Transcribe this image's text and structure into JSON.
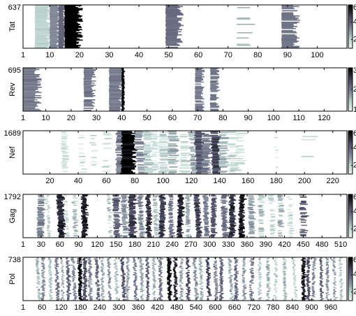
{
  "chart_data": [
    {
      "type": "heatmap",
      "ylabel": "Tat",
      "ymax_label": "637",
      "rows": 637,
      "xlim": [
        1,
        110
      ],
      "xticks": [
        1,
        10,
        20,
        30,
        40,
        50,
        60,
        70,
        80,
        90,
        100
      ],
      "colorbar": {
        "min": 1,
        "max": 6,
        "ticks": [
          2,
          4,
          6
        ]
      },
      "bands": [
        {
          "x0": 5,
          "x1": 10,
          "coverage": 1.0,
          "level": 2.0
        },
        {
          "x0": 10,
          "x1": 13,
          "coverage": 1.0,
          "level": 3.2
        },
        {
          "x0": 13,
          "x1": 15,
          "coverage": 1.0,
          "level": 4.0
        },
        {
          "x0": 15,
          "x1": 20,
          "coverage": 1.0,
          "level": 6.0
        },
        {
          "x0": 49,
          "x1": 54,
          "coverage": 0.95,
          "level": 3.8
        },
        {
          "x0": 73,
          "x1": 78,
          "coverage": 0.2,
          "level": 2.4
        },
        {
          "x0": 88,
          "x1": 93,
          "coverage": 0.9,
          "level": 3.6
        }
      ]
    },
    {
      "type": "heatmap",
      "ylabel": "Rev",
      "ymax_label": "695",
      "rows": 695,
      "xlim": [
        1,
        129
      ],
      "xticks": [
        1,
        10,
        20,
        30,
        40,
        50,
        60,
        70,
        80,
        90,
        100,
        110,
        120
      ],
      "colorbar": {
        "min": 1,
        "max": 3,
        "ticks": [
          1,
          2,
          3
        ]
      },
      "bands": [
        {
          "x0": 1,
          "x1": 7,
          "coverage": 1.0,
          "level": 2.0
        },
        {
          "x0": 25,
          "x1": 29,
          "coverage": 0.95,
          "level": 2.0
        },
        {
          "x0": 35,
          "x1": 40,
          "coverage": 1.0,
          "level": 2.0
        },
        {
          "x0": 40,
          "x1": 41,
          "coverage": 1.0,
          "level": 3.0
        },
        {
          "x0": 69,
          "x1": 72,
          "coverage": 0.9,
          "level": 2.0
        },
        {
          "x0": 75,
          "x1": 78,
          "coverage": 0.85,
          "level": 2.0
        }
      ]
    },
    {
      "type": "heatmap",
      "ylabel": "Nef",
      "ymax_label": "1689",
      "rows": 1689,
      "xlim": [
        1,
        230
      ],
      "xticks": [
        20,
        40,
        60,
        80,
        100,
        120,
        140,
        160,
        180,
        200,
        220
      ],
      "colorbar": {
        "min": 1,
        "max": 6,
        "ticks": [
          2,
          4,
          6
        ]
      },
      "bands": [
        {
          "x0": 28,
          "x1": 32,
          "coverage": 0.6,
          "level": 1.6
        },
        {
          "x0": 40,
          "x1": 44,
          "coverage": 0.4,
          "level": 1.6
        },
        {
          "x0": 48,
          "x1": 52,
          "coverage": 0.3,
          "level": 1.6
        },
        {
          "x0": 58,
          "x1": 63,
          "coverage": 0.3,
          "level": 1.6
        },
        {
          "x0": 67,
          "x1": 72,
          "coverage": 0.9,
          "level": 3.5
        },
        {
          "x0": 71,
          "x1": 80,
          "coverage": 1.0,
          "level": 6.0
        },
        {
          "x0": 80,
          "x1": 86,
          "coverage": 0.8,
          "level": 3.0
        },
        {
          "x0": 86,
          "x1": 92,
          "coverage": 0.7,
          "level": 2.0
        },
        {
          "x0": 92,
          "x1": 96,
          "coverage": 0.6,
          "level": 1.6
        },
        {
          "x0": 98,
          "x1": 104,
          "coverage": 0.8,
          "level": 1.8
        },
        {
          "x0": 104,
          "x1": 110,
          "coverage": 0.7,
          "level": 2.6
        },
        {
          "x0": 112,
          "x1": 118,
          "coverage": 0.6,
          "level": 1.8
        },
        {
          "x0": 118,
          "x1": 122,
          "coverage": 0.8,
          "level": 2.6
        },
        {
          "x0": 122,
          "x1": 128,
          "coverage": 1.0,
          "level": 4.2
        },
        {
          "x0": 128,
          "x1": 134,
          "coverage": 0.9,
          "level": 3.4
        },
        {
          "x0": 134,
          "x1": 140,
          "coverage": 0.95,
          "level": 4.6
        },
        {
          "x0": 140,
          "x1": 146,
          "coverage": 0.7,
          "level": 2.4
        },
        {
          "x0": 146,
          "x1": 152,
          "coverage": 0.5,
          "level": 1.8
        },
        {
          "x0": 152,
          "x1": 158,
          "coverage": 0.4,
          "level": 1.6
        },
        {
          "x0": 178,
          "x1": 180,
          "coverage": 0.1,
          "level": 1.6
        },
        {
          "x0": 198,
          "x1": 208,
          "coverage": 0.05,
          "level": 1.6
        }
      ]
    },
    {
      "type": "heatmap",
      "ylabel": "Gag",
      "ymax_label": "1792",
      "rows": 1792,
      "xlim": [
        1,
        520
      ],
      "xticks": [
        1,
        30,
        60,
        90,
        120,
        150,
        180,
        210,
        240,
        270,
        300,
        330,
        360,
        390,
        420,
        450,
        480,
        510
      ],
      "colorbar": {
        "min": 1,
        "max": 6,
        "ticks": [
          2,
          4,
          6
        ]
      },
      "bands": [
        {
          "x0": 25,
          "x1": 35,
          "coverage": 0.95,
          "level": 3.2
        },
        {
          "x0": 38,
          "x1": 42,
          "coverage": 0.8,
          "level": 2.0
        },
        {
          "x0": 55,
          "x1": 65,
          "coverage": 1.0,
          "level": 5.2
        },
        {
          "x0": 67,
          "x1": 72,
          "coverage": 0.6,
          "level": 1.6
        },
        {
          "x0": 80,
          "x1": 86,
          "coverage": 0.7,
          "level": 2.4
        },
        {
          "x0": 95,
          "x1": 103,
          "coverage": 1.0,
          "level": 5.4
        },
        {
          "x0": 135,
          "x1": 140,
          "coverage": 0.6,
          "level": 2.2
        },
        {
          "x0": 145,
          "x1": 155,
          "coverage": 0.95,
          "level": 4.0
        },
        {
          "x0": 158,
          "x1": 166,
          "coverage": 0.9,
          "level": 3.0
        },
        {
          "x0": 170,
          "x1": 180,
          "coverage": 1.0,
          "level": 4.6
        },
        {
          "x0": 185,
          "x1": 192,
          "coverage": 0.9,
          "level": 3.2
        },
        {
          "x0": 198,
          "x1": 205,
          "coverage": 1.0,
          "level": 5.0
        },
        {
          "x0": 210,
          "x1": 216,
          "coverage": 0.8,
          "level": 2.4
        },
        {
          "x0": 220,
          "x1": 228,
          "coverage": 1.0,
          "level": 4.8
        },
        {
          "x0": 235,
          "x1": 242,
          "coverage": 0.9,
          "level": 3.6
        },
        {
          "x0": 250,
          "x1": 258,
          "coverage": 1.0,
          "level": 5.2
        },
        {
          "x0": 262,
          "x1": 268,
          "coverage": 0.8,
          "level": 2.6
        },
        {
          "x0": 275,
          "x1": 283,
          "coverage": 1.0,
          "level": 4.6
        },
        {
          "x0": 290,
          "x1": 297,
          "coverage": 0.9,
          "level": 3.4
        },
        {
          "x0": 303,
          "x1": 310,
          "coverage": 0.9,
          "level": 4.2
        },
        {
          "x0": 318,
          "x1": 326,
          "coverage": 0.9,
          "level": 3.6
        },
        {
          "x0": 332,
          "x1": 340,
          "coverage": 1.0,
          "level": 5.0
        },
        {
          "x0": 348,
          "x1": 356,
          "coverage": 1.0,
          "level": 5.6
        },
        {
          "x0": 362,
          "x1": 370,
          "coverage": 0.8,
          "level": 2.8
        },
        {
          "x0": 378,
          "x1": 386,
          "coverage": 0.7,
          "level": 2.2
        },
        {
          "x0": 395,
          "x1": 402,
          "coverage": 0.6,
          "level": 1.8
        },
        {
          "x0": 410,
          "x1": 418,
          "coverage": 0.6,
          "level": 2.4
        },
        {
          "x0": 425,
          "x1": 432,
          "coverage": 0.5,
          "level": 1.8
        },
        {
          "x0": 445,
          "x1": 455,
          "coverage": 0.6,
          "level": 4.0
        }
      ]
    },
    {
      "type": "heatmap",
      "ylabel": "Pol",
      "ymax_label": "738",
      "rows": 738,
      "xlim": [
        1,
        1010
      ],
      "xticks": [
        1,
        60,
        120,
        180,
        240,
        300,
        360,
        420,
        480,
        540,
        600,
        660,
        720,
        780,
        840,
        900,
        960
      ],
      "colorbar": {
        "min": 1,
        "max": 6,
        "ticks": [
          2,
          4,
          6
        ]
      },
      "bands": [
        {
          "x0": 40,
          "x1": 48,
          "coverage": 0.9,
          "level": 2.4
        },
        {
          "x0": 60,
          "x1": 68,
          "coverage": 0.9,
          "level": 3.0
        },
        {
          "x0": 80,
          "x1": 88,
          "coverage": 0.9,
          "level": 2.2
        },
        {
          "x0": 100,
          "x1": 108,
          "coverage": 0.9,
          "level": 3.4
        },
        {
          "x0": 118,
          "x1": 124,
          "coverage": 0.9,
          "level": 2.4
        },
        {
          "x0": 135,
          "x1": 143,
          "coverage": 0.95,
          "level": 4.0
        },
        {
          "x0": 152,
          "x1": 160,
          "coverage": 0.9,
          "level": 3.0
        },
        {
          "x0": 172,
          "x1": 182,
          "coverage": 1.0,
          "level": 5.6
        },
        {
          "x0": 188,
          "x1": 198,
          "coverage": 1.0,
          "level": 4.4
        },
        {
          "x0": 205,
          "x1": 213,
          "coverage": 0.9,
          "level": 3.2
        },
        {
          "x0": 225,
          "x1": 233,
          "coverage": 0.95,
          "level": 3.8
        },
        {
          "x0": 245,
          "x1": 252,
          "coverage": 0.9,
          "level": 2.6
        },
        {
          "x0": 265,
          "x1": 272,
          "coverage": 0.9,
          "level": 3.2
        },
        {
          "x0": 285,
          "x1": 292,
          "coverage": 0.9,
          "level": 2.4
        },
        {
          "x0": 305,
          "x1": 313,
          "coverage": 0.95,
          "level": 4.2
        },
        {
          "x0": 325,
          "x1": 332,
          "coverage": 0.9,
          "level": 2.8
        },
        {
          "x0": 345,
          "x1": 352,
          "coverage": 0.9,
          "level": 3.4
        },
        {
          "x0": 365,
          "x1": 373,
          "coverage": 0.9,
          "level": 2.6
        },
        {
          "x0": 385,
          "x1": 392,
          "coverage": 0.95,
          "level": 4.0
        },
        {
          "x0": 405,
          "x1": 412,
          "coverage": 0.9,
          "level": 2.4
        },
        {
          "x0": 425,
          "x1": 433,
          "coverage": 0.95,
          "level": 3.6
        },
        {
          "x0": 450,
          "x1": 460,
          "coverage": 1.0,
          "level": 5.8
        },
        {
          "x0": 470,
          "x1": 478,
          "coverage": 1.0,
          "level": 5.2
        },
        {
          "x0": 490,
          "x1": 498,
          "coverage": 0.9,
          "level": 2.8
        },
        {
          "x0": 510,
          "x1": 518,
          "coverage": 0.95,
          "level": 4.4
        },
        {
          "x0": 530,
          "x1": 538,
          "coverage": 0.9,
          "level": 3.0
        },
        {
          "x0": 550,
          "x1": 558,
          "coverage": 0.9,
          "level": 2.4
        },
        {
          "x0": 572,
          "x1": 580,
          "coverage": 0.95,
          "level": 4.6
        },
        {
          "x0": 595,
          "x1": 603,
          "coverage": 0.9,
          "level": 3.2
        },
        {
          "x0": 615,
          "x1": 623,
          "coverage": 0.95,
          "level": 4.0
        },
        {
          "x0": 640,
          "x1": 648,
          "coverage": 0.9,
          "level": 2.6
        },
        {
          "x0": 660,
          "x1": 668,
          "coverage": 0.95,
          "level": 3.8
        },
        {
          "x0": 685,
          "x1": 693,
          "coverage": 0.9,
          "level": 2.8
        },
        {
          "x0": 710,
          "x1": 718,
          "coverage": 0.9,
          "level": 3.4
        },
        {
          "x0": 735,
          "x1": 742,
          "coverage": 0.8,
          "level": 2.2
        },
        {
          "x0": 760,
          "x1": 768,
          "coverage": 0.8,
          "level": 2.6
        },
        {
          "x0": 785,
          "x1": 792,
          "coverage": 0.8,
          "level": 2.0
        },
        {
          "x0": 810,
          "x1": 818,
          "coverage": 0.8,
          "level": 2.4
        },
        {
          "x0": 840,
          "x1": 846,
          "coverage": 0.8,
          "level": 2.0
        },
        {
          "x0": 870,
          "x1": 880,
          "coverage": 1.0,
          "level": 5.4
        },
        {
          "x0": 885,
          "x1": 893,
          "coverage": 0.95,
          "level": 4.4
        },
        {
          "x0": 905,
          "x1": 912,
          "coverage": 0.9,
          "level": 3.2
        },
        {
          "x0": 925,
          "x1": 932,
          "coverage": 0.95,
          "level": 4.0
        },
        {
          "x0": 945,
          "x1": 952,
          "coverage": 0.9,
          "level": 3.0
        },
        {
          "x0": 965,
          "x1": 972,
          "coverage": 0.9,
          "level": 2.6
        },
        {
          "x0": 985,
          "x1": 992,
          "coverage": 0.8,
          "level": 2.2
        }
      ]
    }
  ],
  "colors": {
    "low": "#e4f1ee",
    "mid_low": "#a8bbb6",
    "mid": "#7a7f95",
    "mid_high": "#4e4e66",
    "high": "#000000"
  }
}
